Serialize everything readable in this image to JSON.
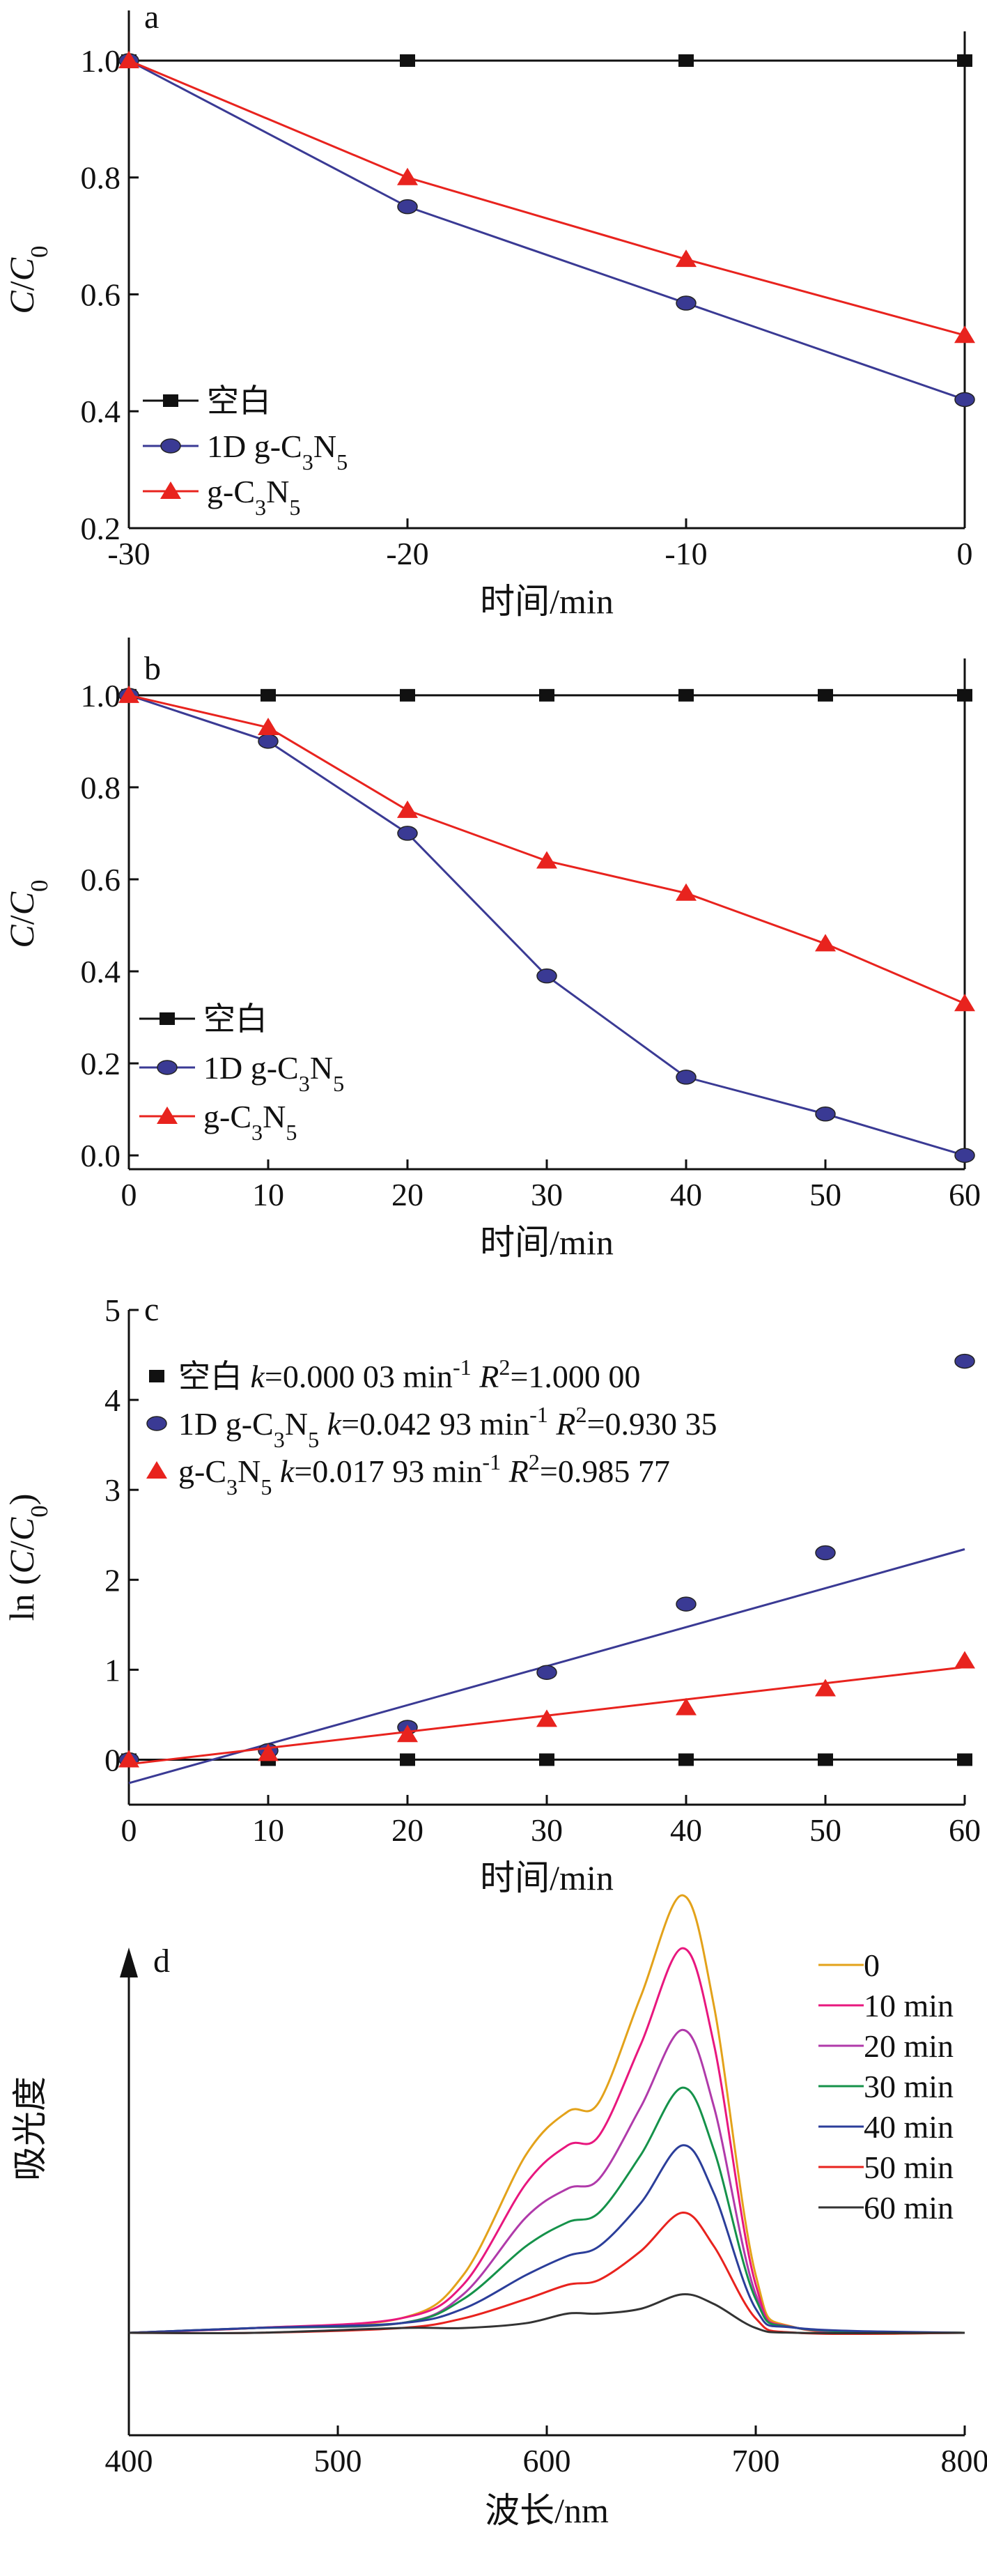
{
  "colors": {
    "black": "#111111",
    "blue": "#3a3a94",
    "red": "#e8231e",
    "axis": "#111111"
  },
  "chart_data": [
    {
      "panel": "a",
      "type": "line",
      "x": [
        -30,
        -20,
        -10,
        0
      ],
      "xlim": [
        -30,
        0
      ],
      "ylim": [
        0.2,
        1.05
      ],
      "xticks": [
        "-30",
        "-20",
        "-10",
        "0"
      ],
      "yticks": [
        "0.2",
        "0.4",
        "0.6",
        "0.8",
        "1.0"
      ],
      "xlabel": "时间/min",
      "ylabel": "C/C0",
      "series": [
        {
          "name": "空白",
          "marker": "square",
          "color": "#111111",
          "values": [
            1.0,
            1.0,
            1.0,
            1.0
          ]
        },
        {
          "name": "1D g-C3N5",
          "marker": "circle",
          "color": "#3a3a94",
          "values": [
            1.0,
            0.75,
            0.585,
            0.42
          ]
        },
        {
          "name": "g-C3N5",
          "marker": "triangle",
          "color": "#e8231e",
          "values": [
            1.0,
            0.8,
            0.66,
            0.53
          ]
        }
      ],
      "legend": "bottom-left"
    },
    {
      "panel": "b",
      "type": "line",
      "x": [
        0,
        10,
        20,
        30,
        40,
        50,
        60
      ],
      "xlim": [
        0,
        60
      ],
      "ylim": [
        -0.03,
        1.08
      ],
      "xticks": [
        "0",
        "10",
        "20",
        "30",
        "40",
        "50",
        "60"
      ],
      "yticks": [
        "0.0",
        "0.2",
        "0.4",
        "0.6",
        "0.8",
        "1.0"
      ],
      "xlabel": "时间/min",
      "ylabel": "C/C0",
      "series": [
        {
          "name": "空白",
          "marker": "square",
          "color": "#111111",
          "values": [
            1.0,
            1.0,
            1.0,
            1.0,
            1.0,
            1.0,
            1.0
          ]
        },
        {
          "name": "1D g-C3N5",
          "marker": "circle",
          "color": "#3a3a94",
          "values": [
            1.0,
            0.9,
            0.7,
            0.39,
            0.17,
            0.09,
            0.0
          ]
        },
        {
          "name": "g-C3N5",
          "marker": "triangle",
          "color": "#e8231e",
          "values": [
            1.0,
            0.93,
            0.75,
            0.64,
            0.57,
            0.46,
            0.33
          ]
        }
      ],
      "legend": "bottom-left"
    },
    {
      "panel": "c",
      "type": "scatter",
      "x": [
        0,
        10,
        20,
        30,
        40,
        50,
        60
      ],
      "xlim": [
        0,
        60
      ],
      "ylim": [
        -0.5,
        5
      ],
      "xticks": [
        "0",
        "10",
        "20",
        "30",
        "40",
        "50",
        "60"
      ],
      "yticks": [
        "0",
        "1",
        "2",
        "3",
        "4",
        "5"
      ],
      "xlabel": "时间/min",
      "ylabel": "ln (C/C0)",
      "series": [
        {
          "name": "空白",
          "label": "空白 k=0.000 03 min-1 R2=1.000 00",
          "marker": "square",
          "color": "#111111",
          "values": [
            0,
            0,
            0,
            0,
            0,
            0,
            0
          ],
          "fit": [
            0.0,
            0.0018
          ]
        },
        {
          "name": "1D g-C3N5",
          "label": "1D g-C3N5 k=0.042 93 min-1 R2=0.930 35",
          "marker": "circle",
          "color": "#3a3a94",
          "values": [
            0,
            0.1,
            0.36,
            0.97,
            1.73,
            2.3,
            4.43
          ],
          "fit": [
            -0.26,
            2.34
          ]
        },
        {
          "name": "g-C3N5",
          "label": "g-C3N5 k=0.017 93 min-1 R2=0.985 77",
          "marker": "triangle",
          "color": "#e8231e",
          "values": [
            0,
            0.07,
            0.28,
            0.45,
            0.58,
            0.79,
            1.1
          ],
          "fit": [
            -0.05,
            1.03
          ]
        }
      ],
      "legend": "top-left"
    },
    {
      "panel": "d",
      "type": "line",
      "xlim": [
        400,
        800
      ],
      "xticks": [
        "400",
        "500",
        "600",
        "700",
        "800"
      ],
      "xlabel": "波长/nm",
      "ylabel": "吸光度",
      "x": [
        400,
        460,
        530,
        560,
        590,
        610,
        625,
        645,
        665,
        680,
        700,
        720,
        800
      ],
      "series": [
        {
          "name": "0",
          "color": "#e3a21a",
          "values": [
            0.0,
            0.01,
            0.03,
            0.12,
            0.37,
            0.46,
            0.48,
            0.7,
            0.91,
            0.68,
            0.12,
            0.01,
            0.0
          ]
        },
        {
          "name": "10 min",
          "color": "#e8177e",
          "values": [
            0.0,
            0.01,
            0.03,
            0.1,
            0.31,
            0.39,
            0.41,
            0.6,
            0.8,
            0.6,
            0.1,
            0.01,
            0.0
          ]
        },
        {
          "name": "20 min",
          "color": "#b03aaa",
          "values": [
            0.0,
            0.01,
            0.02,
            0.08,
            0.24,
            0.3,
            0.32,
            0.47,
            0.63,
            0.47,
            0.08,
            0.01,
            0.0
          ]
        },
        {
          "name": "30 min",
          "color": "#15924a",
          "values": [
            0.0,
            0.01,
            0.02,
            0.07,
            0.18,
            0.23,
            0.25,
            0.37,
            0.51,
            0.38,
            0.07,
            0.01,
            0.0
          ]
        },
        {
          "name": "40 min",
          "color": "#2b3e9a",
          "values": [
            0.0,
            0.01,
            0.02,
            0.05,
            0.12,
            0.16,
            0.18,
            0.27,
            0.39,
            0.29,
            0.05,
            0.01,
            0.0
          ]
        },
        {
          "name": "50 min",
          "color": "#e8231e",
          "values": [
            0.0,
            0.0,
            0.01,
            0.03,
            0.07,
            0.1,
            0.11,
            0.17,
            0.25,
            0.18,
            0.03,
            0.0,
            0.0
          ]
        },
        {
          "name": "60 min",
          "color": "#333333",
          "values": [
            0.0,
            0.0,
            0.01,
            0.01,
            0.02,
            0.04,
            0.04,
            0.05,
            0.08,
            0.06,
            0.01,
            0.0,
            0.0
          ]
        }
      ],
      "legend": "top-right"
    }
  ]
}
